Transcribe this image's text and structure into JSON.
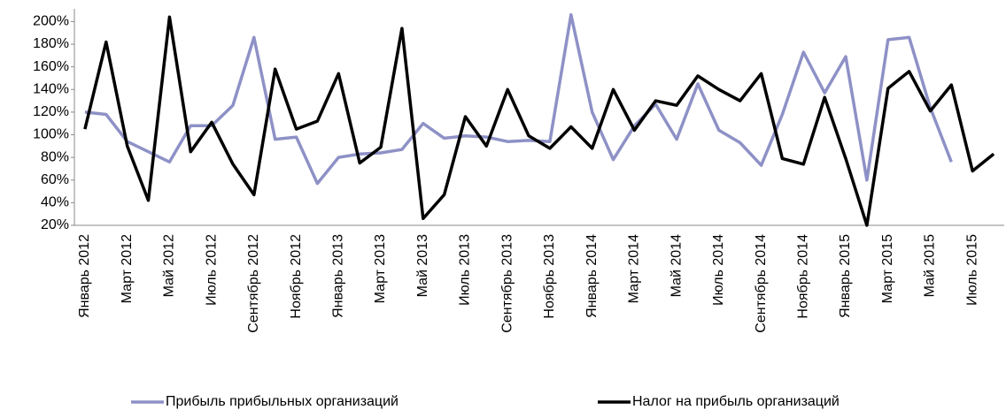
{
  "chart_data": {
    "type": "line",
    "categories": [
      "Январь 2012",
      null,
      "Март 2012",
      null,
      "Май 2012",
      null,
      "Июль 2012",
      null,
      "Сентябрь 2012",
      null,
      "Ноябрь 2012",
      null,
      "Январь 2013",
      null,
      "Март 2013",
      null,
      "Май 2013",
      null,
      "Июль 2013",
      null,
      "Сентябрь 2013",
      null,
      "Ноябрь 2013",
      null,
      "Январь 2014",
      null,
      "Март 2014",
      null,
      "Май 2014",
      null,
      "Июль 2014",
      null,
      "Сентябрь 2014",
      null,
      "Ноябрь 2014",
      null,
      "Январь 2015",
      null,
      "Март 2015",
      null,
      "Май 2015",
      null,
      "Июль 2015",
      null
    ],
    "series": [
      {
        "name": "Прибыль прибыльных организаций",
        "color": "#8e91c6",
        "values": [
          120,
          118,
          94,
          85,
          76,
          108,
          108,
          126,
          186,
          96,
          98,
          57,
          80,
          83,
          84,
          87,
          110,
          97,
          99,
          98,
          94,
          95,
          94,
          206,
          120,
          78,
          108,
          127,
          96,
          145,
          104,
          93,
          73,
          118,
          173,
          137,
          169,
          60,
          184,
          186,
          124,
          76,
          null,
          null
        ]
      },
      {
        "name": "Налог на прибыль организаций",
        "color": "#000000",
        "values": [
          105,
          182,
          90,
          42,
          204,
          85,
          111,
          74,
          47,
          158,
          105,
          112,
          154,
          75,
          89,
          194,
          26,
          47,
          116,
          90,
          140,
          99,
          88,
          107,
          88,
          140,
          104,
          130,
          126,
          152,
          140,
          130,
          154,
          79,
          74,
          133,
          79,
          20,
          141,
          156,
          121,
          144,
          68,
          83
        ]
      }
    ],
    "ylim": [
      20,
      205
    ],
    "yticks": [
      {
        "value": 20,
        "label": "20%"
      },
      {
        "value": 40,
        "label": "40%"
      },
      {
        "value": 60,
        "label": "60%"
      },
      {
        "value": 80,
        "label": "80%"
      },
      {
        "value": 100,
        "label": "100%"
      },
      {
        "value": 120,
        "label": "120%"
      },
      {
        "value": 140,
        "label": "140%"
      },
      {
        "value": 160,
        "label": "160%"
      },
      {
        "value": 180,
        "label": "180%"
      },
      {
        "value": 200,
        "label": "200%"
      }
    ],
    "grid": false,
    "legend": "bottom"
  }
}
